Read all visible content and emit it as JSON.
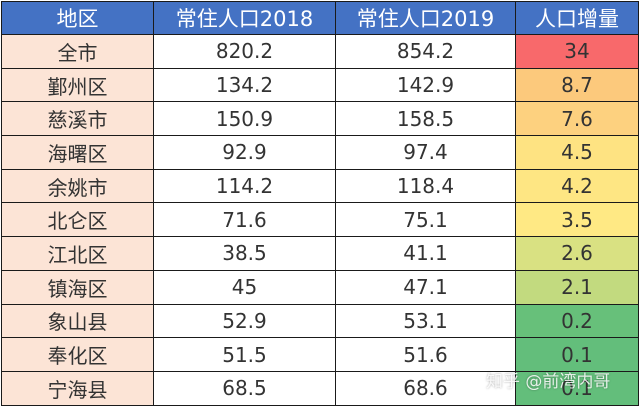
{
  "table": {
    "headers": [
      "地区",
      "常住人口2018",
      "常住人口2019",
      "人口增量"
    ],
    "rows": [
      {
        "region": "全市",
        "pop2018": "820.2",
        "pop2019": "854.2",
        "increase": "34",
        "color": "#f8696b"
      },
      {
        "region": "鄞州区",
        "pop2018": "134.2",
        "pop2019": "142.9",
        "increase": "8.7",
        "color": "#fcc97c"
      },
      {
        "region": "慈溪市",
        "pop2018": "150.9",
        "pop2019": "158.5",
        "increase": "7.6",
        "color": "#fdd17f"
      },
      {
        "region": "海曙区",
        "pop2018": "92.9",
        "pop2019": "97.4",
        "increase": "4.5",
        "color": "#fee382"
      },
      {
        "region": "余姚市",
        "pop2018": "114.2",
        "pop2019": "118.4",
        "increase": "4.2",
        "color": "#fee683"
      },
      {
        "region": "北仑区",
        "pop2018": "71.6",
        "pop2019": "75.1",
        "increase": "3.5",
        "color": "#ffe984"
      },
      {
        "region": "江北区",
        "pop2018": "38.5",
        "pop2019": "41.1",
        "increase": "2.6",
        "color": "#d9e182"
      },
      {
        "region": "镇海区",
        "pop2018": "45",
        "pop2019": "47.1",
        "increase": "2.1",
        "color": "#c2da7f"
      },
      {
        "region": "象山县",
        "pop2018": "52.9",
        "pop2019": "53.1",
        "increase": "0.2",
        "color": "#67c07a"
      },
      {
        "region": "奉化区",
        "pop2018": "51.5",
        "pop2019": "51.6",
        "increase": "0.1",
        "color": "#63be7b"
      },
      {
        "region": "宁海县",
        "pop2018": "68.5",
        "pop2019": "68.6",
        "increase": "0.1",
        "color": "#63be7b"
      }
    ]
  },
  "watermark": "知乎 @前湾内哥",
  "colors": {
    "header_bg": "#4472c4",
    "region_bg": "#fce4d6"
  }
}
